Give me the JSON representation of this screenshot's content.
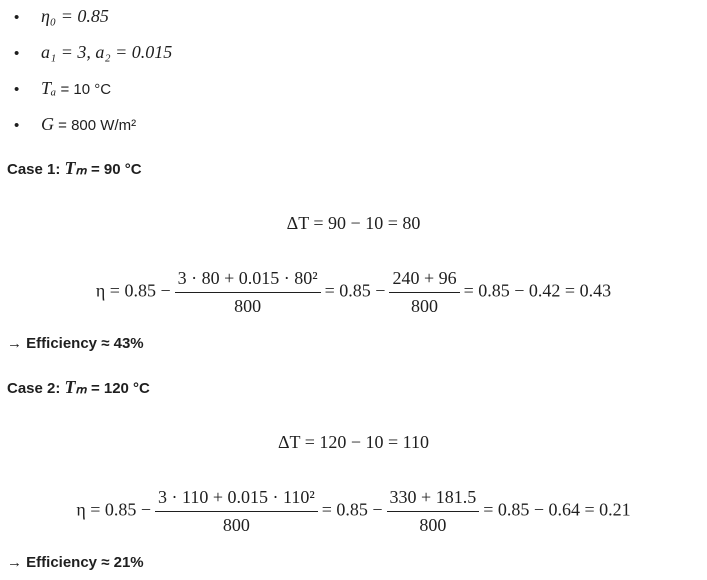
{
  "bullets": [
    {
      "math": "η₀ = 0.85"
    },
    {
      "math": "a₁ = 3, a₂ = 0.015"
    },
    {
      "math": "Tₐ",
      "text": " = 10 °C"
    },
    {
      "math": "G",
      "text": " = 800 W/m²"
    }
  ],
  "cases": [
    {
      "label": "Case 1:",
      "var": "Tₘ",
      "value": "= 90 °C",
      "delta": "ΔT = 90 − 10 = 80",
      "eta": {
        "lead": "η = 0.85 −",
        "num1": "3 · 80 + 0.015 · 80²",
        "den1": "800",
        "mid": "= 0.85 −",
        "num2": "240 + 96",
        "den2": "800",
        "tail": "= 0.85 − 0.42 = 0.43"
      },
      "result": "→ Efficiency ≈ 43%"
    },
    {
      "label": "Case 2:",
      "var": "Tₘ",
      "value": "= 120 °C",
      "delta": "ΔT = 120 − 10 = 110",
      "eta": {
        "lead": "η = 0.85 −",
        "num1": "3 · 110 + 0.015 · 110²",
        "den1": "800",
        "mid": "= 0.85 −",
        "num2": "330 + 181.5",
        "den2": "800",
        "tail": "= 0.85 − 0.64 = 0.21"
      },
      "result": "→ Efficiency ≈ 21%"
    }
  ]
}
